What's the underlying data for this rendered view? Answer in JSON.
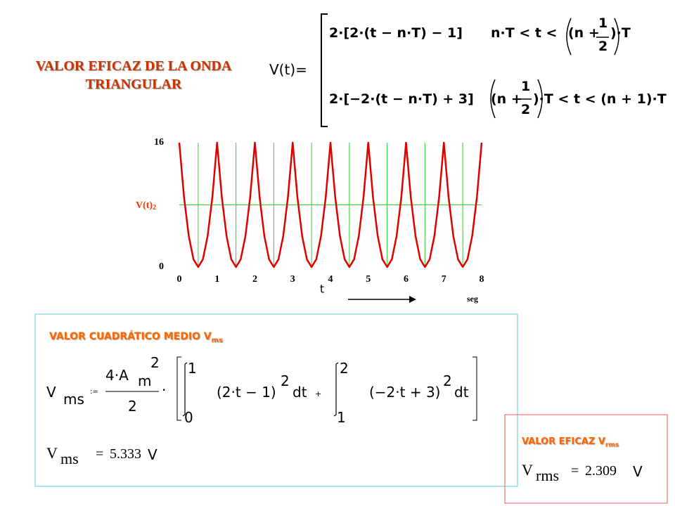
{
  "title": [
    "VALOR EFICAZ DE LA ONDA",
    "TRIANGULAR"
  ],
  "definition": {
    "lhs": "V(t)=",
    "cases": [
      {
        "expr": "2·[2·(t − n·T) − 1]",
        "cond_left": "n·T < t <",
        "paren_left": "(n +",
        "num": "1",
        "den": "2",
        "paren_right": ")·T"
      },
      {
        "expr": "2·[−2·(t − n·T) + 3]",
        "cond_left": "",
        "paren_left": "(n +",
        "num": "1",
        "den": "2",
        "paren_right": ")·T < t < (n + 1)·T"
      }
    ]
  },
  "chart_data": {
    "type": "line",
    "ylabel": "V(t)",
    "ylabel_sup": "2",
    "xlabel": "t",
    "xunit": "seg",
    "color": "#e00000",
    "x": [
      0,
      0.125,
      0.25,
      0.375,
      0.5,
      0.625,
      0.75,
      0.875,
      1,
      1.125,
      1.25,
      1.375,
      1.5,
      1.625,
      1.75,
      1.875,
      2,
      2.125,
      2.25,
      2.375,
      2.5,
      2.625,
      2.75,
      2.875,
      3,
      3.125,
      3.25,
      3.375,
      3.5,
      3.625,
      3.75,
      3.875,
      4,
      4.125,
      4.25,
      4.375,
      4.5,
      4.625,
      4.75,
      4.875,
      5,
      5.125,
      5.25,
      5.375,
      5.5,
      5.625,
      5.75,
      5.875,
      6,
      6.125,
      6.25,
      6.375,
      6.5,
      6.625,
      6.75,
      6.875,
      7,
      7.125,
      7.25,
      7.375,
      7.5,
      7.625,
      7.75,
      7.875,
      8
    ],
    "values": [
      16,
      9,
      4,
      1,
      0,
      1,
      4,
      9,
      16,
      9,
      4,
      1,
      0,
      1,
      4,
      9,
      16,
      9,
      4,
      1,
      0,
      1,
      4,
      9,
      16,
      9,
      4,
      1,
      0,
      1,
      4,
      9,
      16,
      9,
      4,
      1,
      0,
      1,
      4,
      9,
      16,
      9,
      4,
      1,
      0,
      1,
      4,
      9,
      16,
      9,
      4,
      1,
      0,
      1,
      4,
      9,
      16,
      9,
      4,
      1,
      0,
      1,
      4,
      9,
      16
    ],
    "xlim": [
      0,
      8
    ],
    "xticks": [
      0,
      1,
      2,
      3,
      4,
      5,
      6,
      7,
      8
    ],
    "ylim": [
      0,
      16
    ],
    "yticks": [
      0,
      16
    ],
    "reference_color": "#33cc33",
    "reference_lines": {
      "y": [
        8
      ],
      "x": [
        0.5,
        1.5,
        2.5,
        3.5,
        4.5,
        5.5,
        6.5,
        7.5
      ]
    }
  },
  "mean_square": {
    "heading": "VALOR CUADRÁTICO MEDIO V",
    "heading_sub": "ms",
    "formula": {
      "v": "V",
      "v_sub": "ms",
      "assign": ":=",
      "num": "4·A",
      "num_m": "m",
      "num_sup": "2",
      "den": "2",
      "dot": "·",
      "int1_upper": "1",
      "int1_lower": "0",
      "int1_body": "(2·t − 1)",
      "int1_sup": "2",
      "int1_dt": "dt",
      "plus": "+",
      "int2_upper": "2",
      "int2_lower": "1",
      "int2_body": "(−2·t + 3)",
      "int2_sup": "2",
      "int2_dt": "dt"
    },
    "result": {
      "v": "V",
      "v_sub": "ms",
      "eq": "=",
      "value": "5.333",
      "unit": "V"
    }
  },
  "rms": {
    "heading": "VALOR EFICAZ V",
    "heading_sub": "rms",
    "result": {
      "v": "V",
      "v_sub": "rms",
      "eq": "=",
      "value": "2.309",
      "unit": "V"
    }
  }
}
